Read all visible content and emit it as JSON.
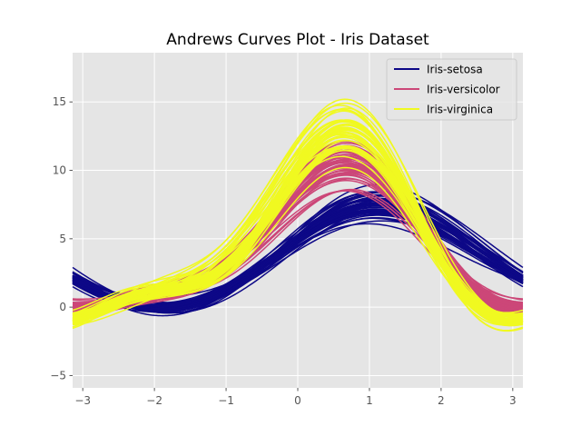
{
  "chart_data": {
    "type": "line",
    "title": "Andrews Curves Plot - Iris Dataset",
    "xlabel": "",
    "ylabel": "",
    "xlim": [
      -3.1416,
      3.1416
    ],
    "ylim": [
      -5.9,
      18.6
    ],
    "x_ticks": [
      -3,
      -2,
      -1,
      0,
      1,
      2,
      3
    ],
    "y_ticks": [
      -5,
      0,
      5,
      10,
      15
    ],
    "x_tick_labels": [
      "−3",
      "−2",
      "−1",
      "0",
      "1",
      "2",
      "3"
    ],
    "y_tick_labels": [
      "−5",
      "0",
      "5",
      "10",
      "15"
    ],
    "grid": true,
    "background": "#e5e5e5",
    "legend_position": "top-right",
    "curve_formula": "f(t) = x1/sqrt(2) + x2*sin(t) + x3*cos(t) + x4*sin(2t)",
    "series": [
      {
        "name": "Iris-setosa",
        "color": "#0d0887",
        "samples": [
          [
            5.1,
            3.5,
            1.4,
            0.2
          ],
          [
            4.9,
            3.0,
            1.4,
            0.2
          ],
          [
            4.7,
            3.2,
            1.3,
            0.2
          ],
          [
            4.6,
            3.1,
            1.5,
            0.2
          ],
          [
            5.0,
            3.6,
            1.4,
            0.2
          ],
          [
            5.4,
            3.9,
            1.7,
            0.4
          ],
          [
            4.6,
            3.4,
            1.4,
            0.3
          ],
          [
            5.0,
            3.4,
            1.5,
            0.2
          ],
          [
            4.4,
            2.9,
            1.4,
            0.2
          ],
          [
            4.9,
            3.1,
            1.5,
            0.1
          ],
          [
            5.4,
            3.7,
            1.5,
            0.2
          ],
          [
            4.8,
            3.4,
            1.6,
            0.2
          ],
          [
            4.8,
            3.0,
            1.4,
            0.1
          ],
          [
            4.3,
            3.0,
            1.1,
            0.1
          ],
          [
            5.8,
            4.0,
            1.2,
            0.2
          ],
          [
            5.7,
            4.4,
            1.5,
            0.4
          ],
          [
            5.4,
            3.9,
            1.3,
            0.4
          ],
          [
            5.1,
            3.5,
            1.4,
            0.3
          ],
          [
            5.7,
            3.8,
            1.7,
            0.3
          ],
          [
            5.1,
            3.8,
            1.5,
            0.3
          ],
          [
            5.4,
            3.4,
            1.7,
            0.2
          ],
          [
            5.1,
            3.7,
            1.5,
            0.4
          ],
          [
            4.6,
            3.6,
            1.0,
            0.2
          ],
          [
            5.1,
            3.3,
            1.7,
            0.5
          ],
          [
            4.8,
            3.4,
            1.9,
            0.2
          ],
          [
            5.0,
            3.0,
            1.6,
            0.2
          ],
          [
            5.0,
            3.4,
            1.6,
            0.4
          ],
          [
            5.2,
            3.5,
            1.5,
            0.2
          ],
          [
            5.2,
            3.4,
            1.4,
            0.2
          ],
          [
            4.7,
            3.2,
            1.6,
            0.2
          ],
          [
            4.8,
            3.1,
            1.6,
            0.2
          ],
          [
            5.4,
            3.4,
            1.5,
            0.4
          ],
          [
            5.2,
            4.1,
            1.5,
            0.1
          ],
          [
            5.5,
            4.2,
            1.4,
            0.2
          ],
          [
            4.9,
            3.1,
            1.5,
            0.1
          ],
          [
            5.0,
            3.2,
            1.2,
            0.2
          ],
          [
            5.5,
            3.5,
            1.3,
            0.2
          ],
          [
            4.9,
            3.1,
            1.5,
            0.1
          ],
          [
            4.4,
            3.0,
            1.3,
            0.2
          ],
          [
            5.1,
            3.4,
            1.5,
            0.2
          ],
          [
            5.0,
            3.5,
            1.3,
            0.3
          ],
          [
            4.5,
            2.3,
            1.3,
            0.3
          ],
          [
            4.4,
            3.2,
            1.3,
            0.2
          ],
          [
            5.0,
            3.5,
            1.6,
            0.6
          ],
          [
            5.1,
            3.8,
            1.9,
            0.4
          ],
          [
            4.8,
            3.0,
            1.4,
            0.3
          ],
          [
            5.1,
            3.8,
            1.6,
            0.2
          ],
          [
            4.6,
            3.2,
            1.4,
            0.2
          ],
          [
            5.3,
            3.7,
            1.5,
            0.2
          ],
          [
            5.0,
            3.3,
            1.4,
            0.2
          ]
        ]
      },
      {
        "name": "Iris-versicolor",
        "color": "#cc4778",
        "samples": [
          [
            7.0,
            3.2,
            4.7,
            1.4
          ],
          [
            6.4,
            3.2,
            4.5,
            1.5
          ],
          [
            6.9,
            3.1,
            4.9,
            1.5
          ],
          [
            5.5,
            2.3,
            4.0,
            1.3
          ],
          [
            6.5,
            2.8,
            4.6,
            1.5
          ],
          [
            5.7,
            2.8,
            4.5,
            1.3
          ],
          [
            6.3,
            3.3,
            4.7,
            1.6
          ],
          [
            4.9,
            2.4,
            3.3,
            1.0
          ],
          [
            6.6,
            2.9,
            4.6,
            1.3
          ],
          [
            5.2,
            2.7,
            3.9,
            1.4
          ],
          [
            5.0,
            2.0,
            3.5,
            1.0
          ],
          [
            5.9,
            3.0,
            4.2,
            1.5
          ],
          [
            6.0,
            2.2,
            4.0,
            1.0
          ],
          [
            6.1,
            2.9,
            4.7,
            1.4
          ],
          [
            5.6,
            2.9,
            3.6,
            1.3
          ],
          [
            6.7,
            3.1,
            4.4,
            1.4
          ],
          [
            5.6,
            3.0,
            4.5,
            1.5
          ],
          [
            5.8,
            2.7,
            4.1,
            1.0
          ],
          [
            6.2,
            2.2,
            4.5,
            1.5
          ],
          [
            5.6,
            2.5,
            3.9,
            1.1
          ],
          [
            5.9,
            3.2,
            4.8,
            1.8
          ],
          [
            6.1,
            2.8,
            4.0,
            1.3
          ],
          [
            6.3,
            2.5,
            4.9,
            1.5
          ],
          [
            6.1,
            2.8,
            4.7,
            1.2
          ],
          [
            6.4,
            2.9,
            4.3,
            1.3
          ],
          [
            6.6,
            3.0,
            4.4,
            1.4
          ],
          [
            6.8,
            2.8,
            4.8,
            1.4
          ],
          [
            6.7,
            3.0,
            5.0,
            1.7
          ],
          [
            6.0,
            2.9,
            4.5,
            1.5
          ],
          [
            5.7,
            2.6,
            3.5,
            1.0
          ],
          [
            5.5,
            2.4,
            3.8,
            1.1
          ],
          [
            5.5,
            2.4,
            3.7,
            1.0
          ],
          [
            5.8,
            2.7,
            3.9,
            1.2
          ],
          [
            6.0,
            2.7,
            5.1,
            1.6
          ],
          [
            5.4,
            3.0,
            4.5,
            1.5
          ],
          [
            6.0,
            3.4,
            4.5,
            1.6
          ],
          [
            6.7,
            3.1,
            4.7,
            1.5
          ],
          [
            6.3,
            2.3,
            4.4,
            1.3
          ],
          [
            5.6,
            3.0,
            4.1,
            1.3
          ],
          [
            5.5,
            2.5,
            4.0,
            1.3
          ],
          [
            5.5,
            2.6,
            4.4,
            1.2
          ],
          [
            6.1,
            3.0,
            4.6,
            1.4
          ],
          [
            5.8,
            2.6,
            4.0,
            1.2
          ],
          [
            5.0,
            2.3,
            3.3,
            1.0
          ],
          [
            5.6,
            2.7,
            4.2,
            1.3
          ],
          [
            5.7,
            3.0,
            4.2,
            1.2
          ],
          [
            5.7,
            2.9,
            4.2,
            1.3
          ],
          [
            6.2,
            2.9,
            4.3,
            1.3
          ],
          [
            5.1,
            2.5,
            3.0,
            1.1
          ],
          [
            5.7,
            2.8,
            4.1,
            1.3
          ]
        ]
      },
      {
        "name": "Iris-virginica",
        "color": "#f0f921",
        "samples": [
          [
            6.3,
            3.3,
            6.0,
            2.5
          ],
          [
            5.8,
            2.7,
            5.1,
            1.9
          ],
          [
            7.1,
            3.0,
            5.9,
            2.1
          ],
          [
            6.3,
            2.9,
            5.6,
            1.8
          ],
          [
            6.5,
            3.0,
            5.8,
            2.2
          ],
          [
            7.6,
            3.0,
            6.6,
            2.1
          ],
          [
            4.9,
            2.5,
            4.5,
            1.7
          ],
          [
            7.3,
            2.9,
            6.3,
            1.8
          ],
          [
            6.7,
            2.5,
            5.8,
            1.8
          ],
          [
            7.2,
            3.6,
            6.1,
            2.5
          ],
          [
            6.5,
            3.2,
            5.1,
            2.0
          ],
          [
            6.4,
            2.7,
            5.3,
            1.9
          ],
          [
            6.8,
            3.0,
            5.5,
            2.1
          ],
          [
            5.7,
            2.5,
            5.0,
            2.0
          ],
          [
            5.8,
            2.8,
            5.1,
            2.4
          ],
          [
            6.4,
            3.2,
            5.3,
            2.3
          ],
          [
            6.5,
            3.0,
            5.5,
            1.8
          ],
          [
            7.7,
            3.8,
            6.7,
            2.2
          ],
          [
            7.7,
            2.6,
            6.9,
            2.3
          ],
          [
            6.0,
            2.2,
            5.0,
            1.5
          ],
          [
            6.9,
            3.2,
            5.7,
            2.3
          ],
          [
            5.6,
            2.8,
            4.9,
            2.0
          ],
          [
            7.7,
            2.8,
            6.7,
            2.0
          ],
          [
            6.3,
            2.7,
            4.9,
            1.8
          ],
          [
            6.7,
            3.3,
            5.7,
            2.1
          ],
          [
            7.2,
            3.2,
            6.0,
            1.8
          ],
          [
            6.2,
            2.8,
            4.8,
            1.8
          ],
          [
            6.1,
            3.0,
            4.9,
            1.8
          ],
          [
            6.4,
            2.8,
            5.6,
            2.1
          ],
          [
            7.2,
            3.0,
            5.8,
            1.6
          ],
          [
            7.4,
            2.8,
            6.1,
            1.9
          ],
          [
            7.9,
            3.8,
            6.4,
            2.0
          ],
          [
            6.4,
            2.8,
            5.6,
            2.2
          ],
          [
            6.3,
            2.8,
            5.1,
            1.5
          ],
          [
            6.1,
            2.6,
            5.6,
            1.4
          ],
          [
            7.7,
            3.0,
            6.1,
            2.3
          ],
          [
            6.3,
            3.4,
            5.6,
            2.4
          ],
          [
            6.4,
            3.1,
            5.5,
            1.8
          ],
          [
            6.0,
            3.0,
            4.8,
            1.8
          ],
          [
            6.9,
            3.1,
            5.4,
            2.1
          ],
          [
            6.7,
            3.1,
            5.6,
            2.4
          ],
          [
            6.9,
            3.1,
            5.1,
            2.3
          ],
          [
            5.8,
            2.7,
            5.1,
            1.9
          ],
          [
            6.8,
            3.2,
            5.9,
            2.3
          ],
          [
            6.7,
            3.3,
            5.7,
            2.5
          ],
          [
            6.7,
            3.0,
            5.2,
            2.3
          ],
          [
            6.3,
            2.5,
            5.0,
            1.9
          ],
          [
            6.5,
            3.0,
            5.2,
            2.0
          ],
          [
            6.2,
            3.4,
            5.4,
            2.3
          ],
          [
            5.9,
            3.0,
            5.1,
            1.8
          ]
        ]
      }
    ]
  }
}
